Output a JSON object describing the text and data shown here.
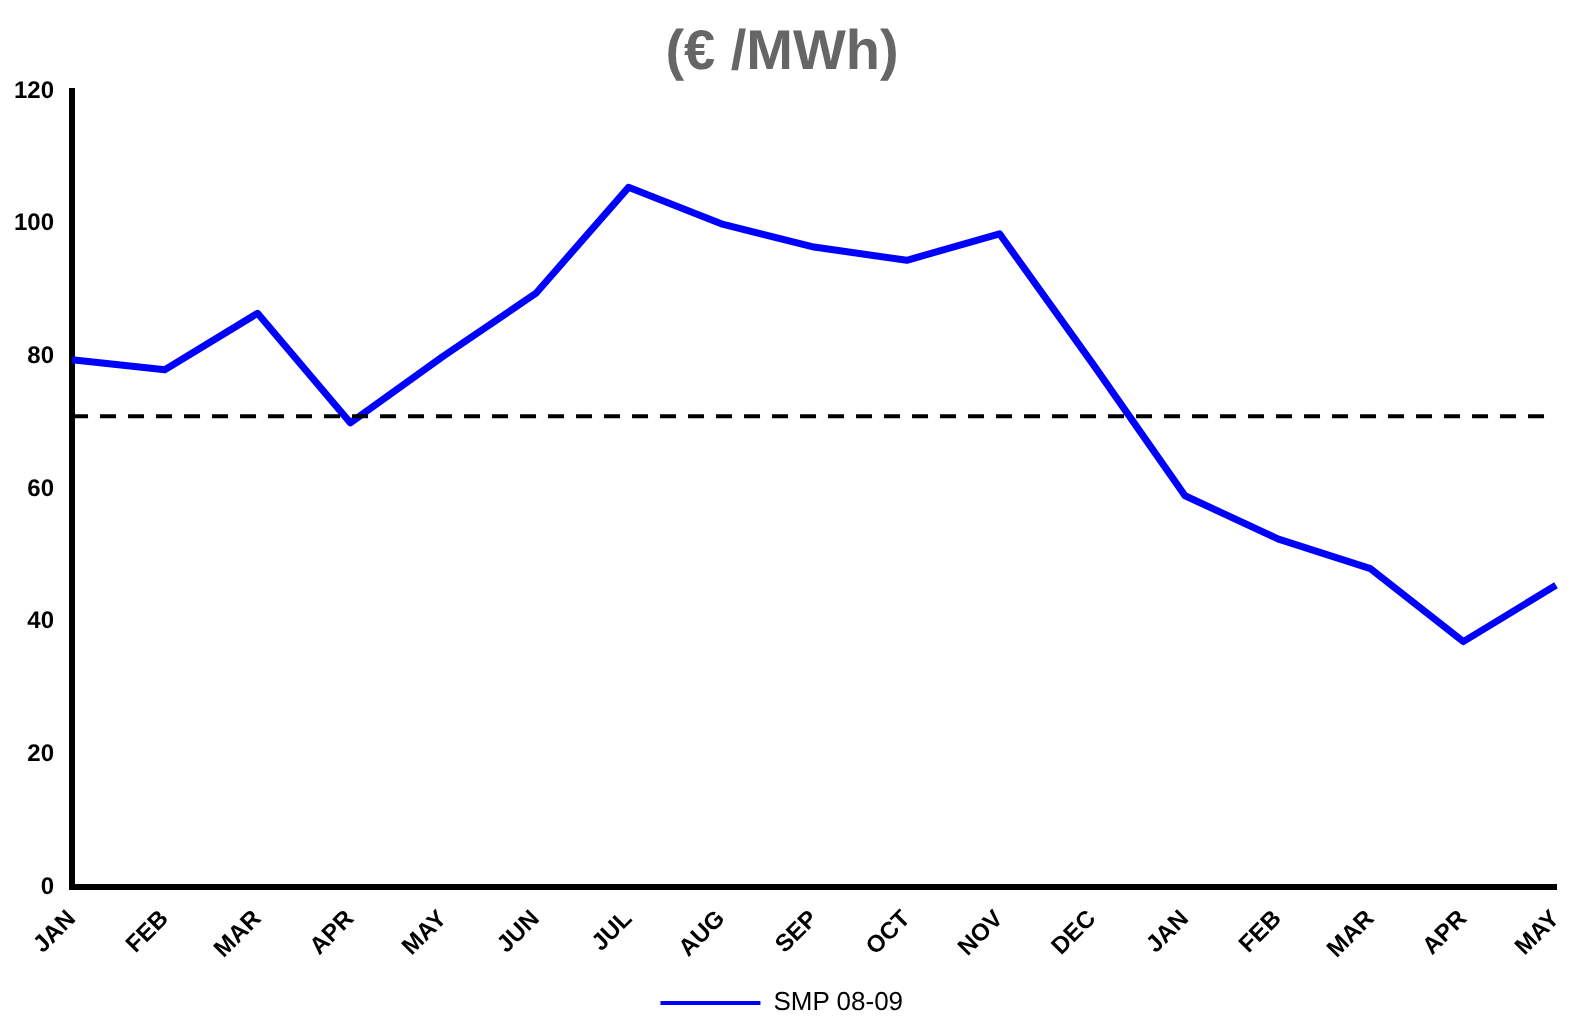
{
  "chart_data": {
    "type": "line",
    "title": "(€ /MWh)",
    "categories": [
      "JAN",
      "FEB",
      "MAR",
      "APR",
      "MAY",
      "JUN",
      "JUL",
      "AUG",
      "SEP",
      "OCT",
      "NOV",
      "DEC",
      "JAN",
      "FEB",
      "MAR",
      "APR",
      "MAY"
    ],
    "series": [
      {
        "name": "SMP 08-09",
        "color": "#0000ff",
        "values": [
          79.5,
          78,
          86.5,
          70,
          80,
          89.5,
          105.5,
          100,
          96.5,
          94.5,
          98.5,
          79,
          59,
          52.5,
          48,
          37,
          45.5
        ]
      }
    ],
    "ylim": [
      0,
      120
    ],
    "yticks": [
      0,
      20,
      40,
      60,
      80,
      100,
      120
    ],
    "ref_lines": [
      {
        "axis": "y",
        "value": 71,
        "line_style": "dashed",
        "color": "#000000"
      }
    ],
    "grid": false,
    "legend": "bottom",
    "marker": "none",
    "line_style": "solid"
  }
}
